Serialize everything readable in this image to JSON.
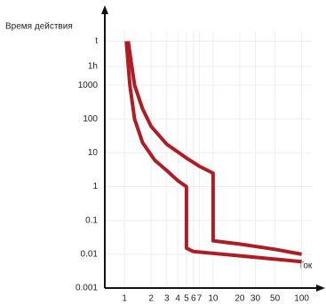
{
  "chart_data": {
    "type": "line",
    "ylabel": "Время действия",
    "xlabel": "Ток",
    "xscale": "log",
    "yscale": "log",
    "xlim": [
      0.6,
      130
    ],
    "ylim": [
      0.001,
      40000
    ],
    "xticks": [
      1,
      2,
      3,
      4,
      5,
      6,
      7,
      10,
      20,
      30,
      50,
      100
    ],
    "yticks": [
      0.001,
      0.01,
      0.1,
      1,
      10,
      100,
      1000,
      {
        "value": 3600,
        "label": "1h"
      },
      {
        "value": 20000,
        "label": "t"
      }
    ],
    "grid": true,
    "series": [
      {
        "color": "#b01c24",
        "x": [
          1.1,
          1.3,
          1.6,
          2,
          3,
          5,
          7,
          10,
          10,
          20,
          50,
          100
        ],
        "values": [
          20000,
          1000,
          200,
          60,
          18,
          7,
          4,
          2.5,
          0.025,
          0.02,
          0.014,
          0.01
        ]
      },
      {
        "color": "#b01c24",
        "x": [
          1.05,
          1.15,
          1.3,
          1.6,
          2.2,
          3,
          4,
          5,
          5,
          6,
          20,
          100
        ],
        "values": [
          20000,
          1000,
          100,
          20,
          6,
          3,
          1.5,
          1,
          0.015,
          0.012,
          0.009,
          0.006
        ]
      }
    ]
  }
}
